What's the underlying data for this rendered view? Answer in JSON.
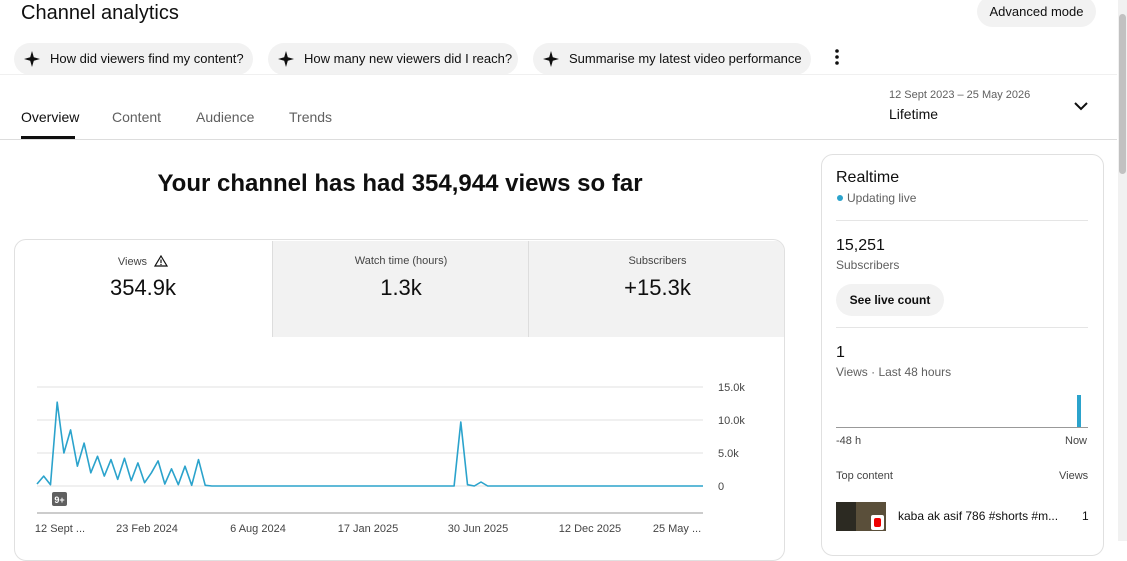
{
  "header": {
    "title": "Channel analytics",
    "advanced_mode": "Advanced mode"
  },
  "suggestions": [
    "How did viewers find my content?",
    "How many new viewers did I reach?",
    "Summarise my latest video performance"
  ],
  "tabs": [
    "Overview",
    "Content",
    "Audience",
    "Trends"
  ],
  "date_range": {
    "range": "12 Sept 2023 – 25 May 2026",
    "period": "Lifetime"
  },
  "headline": "Your channel has had 354,944 views so far",
  "metrics": [
    {
      "label": "Views",
      "value": "354.9k"
    },
    {
      "label": "Watch time (hours)",
      "value": "1.3k"
    },
    {
      "label": "Subscribers",
      "value": "+15.3k"
    }
  ],
  "chart_data": {
    "type": "line",
    "color": "#2ba3cc",
    "values": [
      300,
      1500,
      200,
      12700,
      5000,
      8500,
      3000,
      6500,
      2000,
      4500,
      1500,
      4000,
      1000,
      4200,
      800,
      3500,
      500,
      2000,
      3800,
      300,
      2600,
      200,
      3000,
      100,
      4000,
      100,
      0,
      0,
      0,
      0,
      0,
      0,
      0,
      0,
      0,
      0,
      0,
      0,
      0,
      0,
      0,
      0,
      0,
      0,
      0,
      0,
      0,
      0,
      0,
      0,
      0,
      0,
      0,
      0,
      0,
      0,
      0,
      0,
      0,
      0,
      0,
      0,
      0,
      9700,
      200,
      0,
      600,
      0,
      0,
      0,
      0,
      0,
      0,
      0,
      0,
      0,
      0,
      0,
      0,
      0,
      0,
      0,
      0,
      0,
      0,
      0,
      0,
      0,
      0,
      0,
      0,
      0,
      0,
      0,
      0,
      0,
      0,
      0,
      0,
      0
    ],
    "ylim": [
      0,
      15000
    ],
    "yticks": [
      {
        "value": 0,
        "label": "0"
      },
      {
        "value": 5000,
        "label": "5.0k"
      },
      {
        "value": 10000,
        "label": "10.0k"
      },
      {
        "value": 15000,
        "label": "15.0k"
      }
    ],
    "x_labels": [
      "12 Sept ...",
      "23 Feb 2024",
      "6 Aug 2024",
      "17 Jan 2025",
      "30 Jun 2025",
      "12 Dec 2025",
      "25 May ..."
    ],
    "badge": "9+",
    "grid": true
  },
  "realtime": {
    "title": "Realtime",
    "status": "Updating live",
    "subscribers": "15,251",
    "subscribers_label": "Subscribers",
    "live_button": "See live count",
    "views": "1",
    "views_label": "Views · Last 48 hours",
    "axis_start": "-48 h",
    "axis_end": "Now",
    "top_content": "Top content",
    "views_col": "Views",
    "items": [
      {
        "title": "kaba ak asif 786 #shorts #m...",
        "views": "1"
      }
    ]
  }
}
